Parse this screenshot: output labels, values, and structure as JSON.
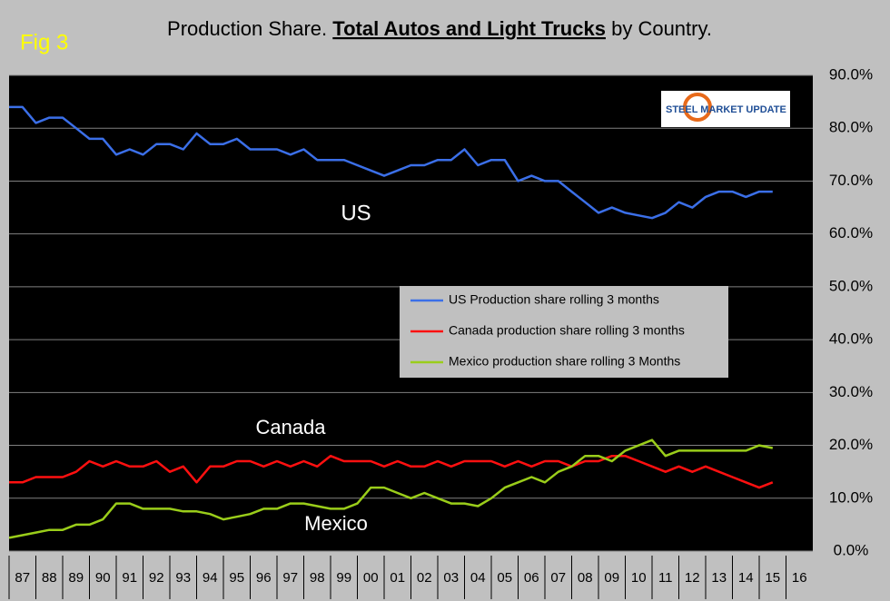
{
  "chart_data": {
    "type": "line",
    "fig_label": "Fig 3",
    "title": "Production Share.",
    "title_emphasis": "Total Autos and Light Trucks",
    "title_end": "by Country.",
    "logo": "STEEL MARKET UPDATE",
    "annotations": [
      "US",
      "Canada",
      "Mexico"
    ],
    "x": [
      1987,
      1987.5,
      1988,
      1988.5,
      1989,
      1989.5,
      1990,
      1990.5,
      1991,
      1991.5,
      1992,
      1992.5,
      1993,
      1993.5,
      1994,
      1994.5,
      1995,
      1995.5,
      1996,
      1996.5,
      1997,
      1997.5,
      1998,
      1998.5,
      1999,
      1999.5,
      2000,
      2000.5,
      2001,
      2001.5,
      2002,
      2002.5,
      2003,
      2003.5,
      2004,
      2004.5,
      2005,
      2005.5,
      2006,
      2006.5,
      2007,
      2007.5,
      2008,
      2008.5,
      2009,
      2009.5,
      2010,
      2010.5,
      2011,
      2011.5,
      2012,
      2012.5,
      2013,
      2013.5,
      2014,
      2014.5,
      2015,
      2015.5
    ],
    "xlim": [
      1987,
      2017
    ],
    "xticks": [
      {
        "value": 1987,
        "label": "87"
      },
      {
        "value": 1988,
        "label": "88"
      },
      {
        "value": 1989,
        "label": "89"
      },
      {
        "value": 1990,
        "label": "90"
      },
      {
        "value": 1991,
        "label": "91"
      },
      {
        "value": 1992,
        "label": "92"
      },
      {
        "value": 1993,
        "label": "93"
      },
      {
        "value": 1994,
        "label": "94"
      },
      {
        "value": 1995,
        "label": "95"
      },
      {
        "value": 1996,
        "label": "96"
      },
      {
        "value": 1997,
        "label": "97"
      },
      {
        "value": 1998,
        "label": "98"
      },
      {
        "value": 1999,
        "label": "99"
      },
      {
        "value": 2000,
        "label": "00"
      },
      {
        "value": 2001,
        "label": "01"
      },
      {
        "value": 2002,
        "label": "02"
      },
      {
        "value": 2003,
        "label": "03"
      },
      {
        "value": 2004,
        "label": "04"
      },
      {
        "value": 2005,
        "label": "05"
      },
      {
        "value": 2006,
        "label": "06"
      },
      {
        "value": 2007,
        "label": "07"
      },
      {
        "value": 2008,
        "label": "08"
      },
      {
        "value": 2009,
        "label": "09"
      },
      {
        "value": 2010,
        "label": "10"
      },
      {
        "value": 2011,
        "label": "11"
      },
      {
        "value": 2012,
        "label": "12"
      },
      {
        "value": 2013,
        "label": "13"
      },
      {
        "value": 2014,
        "label": "14"
      },
      {
        "value": 2015,
        "label": "15"
      },
      {
        "value": 2016,
        "label": "16"
      }
    ],
    "ylim": [
      0,
      90
    ],
    "yticks": [
      {
        "value": 0,
        "label": "0.0%"
      },
      {
        "value": 10,
        "label": "10.0%"
      },
      {
        "value": 20,
        "label": "20.0%"
      },
      {
        "value": 30,
        "label": "30.0%"
      },
      {
        "value": 40,
        "label": "40.0%"
      },
      {
        "value": 50,
        "label": "50.0%"
      },
      {
        "value": 60,
        "label": "60.0%"
      },
      {
        "value": 70,
        "label": "70.0%"
      },
      {
        "value": 80,
        "label": "80.0%"
      },
      {
        "value": 90,
        "label": "90.0%"
      }
    ],
    "grid": true,
    "series": [
      {
        "name": "US Production share rolling 3 months",
        "color": "#3b6fe8",
        "values": [
          84,
          84,
          81,
          82,
          82,
          80,
          78,
          78,
          75,
          76,
          75,
          77,
          77,
          76,
          79,
          77,
          77,
          78,
          76,
          76,
          76,
          75,
          76,
          74,
          74,
          74,
          73,
          72,
          71,
          72,
          73,
          73,
          74,
          74,
          76,
          73,
          74,
          74,
          70,
          71,
          70,
          70,
          68,
          66,
          64,
          65,
          64,
          63.5,
          63,
          64,
          66,
          65,
          67,
          68,
          68,
          67,
          68,
          68
        ]
      },
      {
        "name": "Canada production share rolling 3 months",
        "color": "#ff1010",
        "values": [
          13,
          13,
          14,
          14,
          14,
          15,
          17,
          16,
          17,
          16,
          16,
          17,
          15,
          16,
          13,
          16,
          16,
          17,
          17,
          16,
          17,
          16,
          17,
          16,
          18,
          17,
          17,
          17,
          16,
          17,
          16,
          16,
          17,
          16,
          17,
          17,
          17,
          16,
          17,
          16,
          17,
          17,
          16,
          17,
          17,
          18,
          18,
          17,
          16,
          15,
          16,
          15,
          16,
          15,
          14,
          13,
          12,
          13
        ]
      },
      {
        "name": "Mexico production share rolling 3 Months",
        "color": "#9acd1a",
        "values": [
          2.5,
          3,
          3.5,
          4,
          4,
          5,
          5,
          6,
          9,
          9,
          8,
          8,
          8,
          7.5,
          7.5,
          7,
          6,
          6.5,
          7,
          8,
          8,
          9,
          9,
          8.5,
          8,
          8,
          9,
          12,
          12,
          11,
          10,
          11,
          10,
          9,
          9,
          8.5,
          10,
          12,
          13,
          14,
          13,
          15,
          16,
          18,
          18,
          17,
          19,
          20,
          21,
          18,
          19,
          19,
          19,
          19,
          19,
          19,
          20,
          19.5
        ]
      }
    ]
  }
}
